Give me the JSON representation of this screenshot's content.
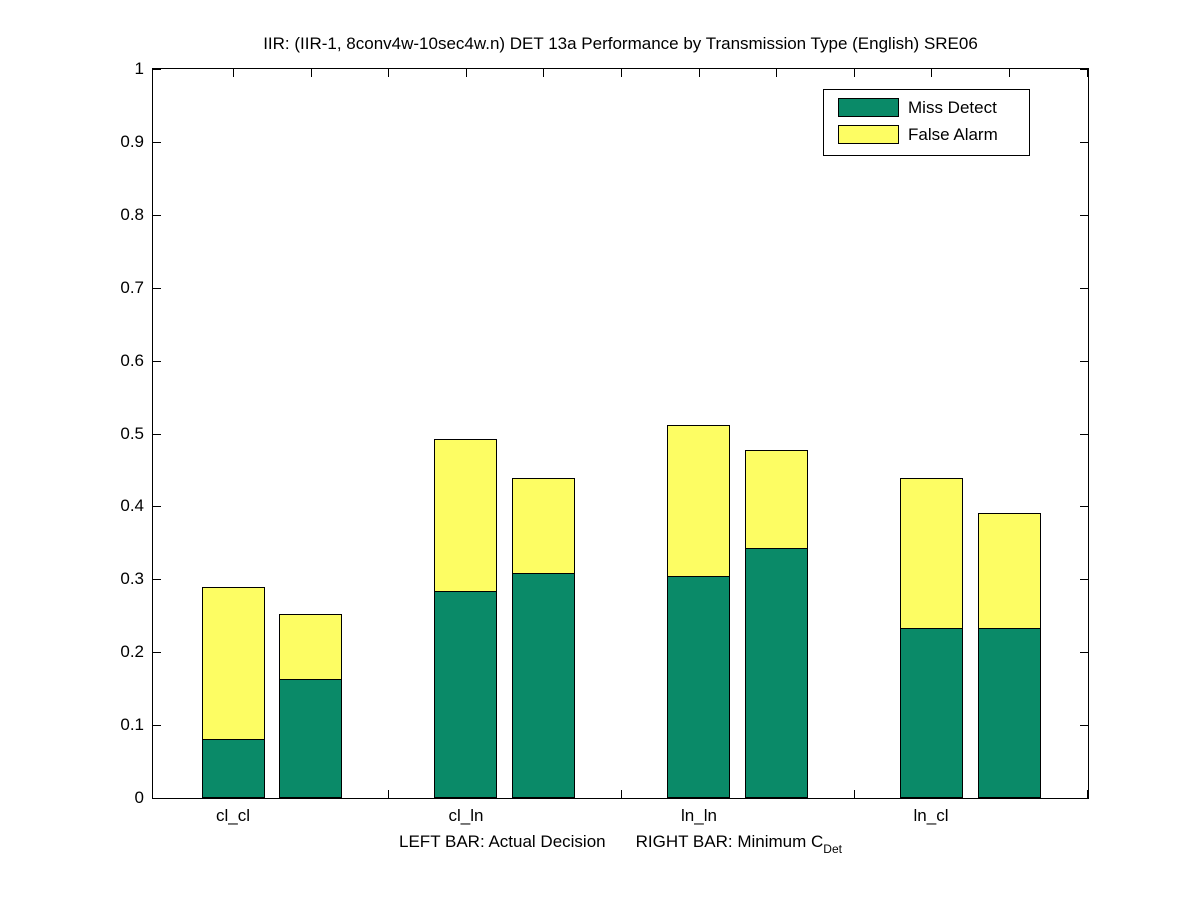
{
  "chart_data": {
    "type": "bar",
    "stacked": true,
    "title": "IIR: (IIR-1, 8conv4w-10sec4w.n) DET 13a Performance by Transmission Type (English) SRE06",
    "xlabel_left": "LEFT BAR: Actual Decision",
    "xlabel_right": "RIGHT BAR: Minimum C",
    "xlabel_subscript": "Det",
    "categories": [
      "cl_cl",
      "cl_ln",
      "ln_ln",
      "ln_cl"
    ],
    "bar_meaning": {
      "left_bar": "Actual Decision",
      "right_bar": "Minimum CDet"
    },
    "series": [
      {
        "name": "Miss Detect",
        "color": "#0a8a68",
        "actual": [
          0.081,
          0.284,
          0.305,
          0.233
        ],
        "minimum": [
          0.163,
          0.309,
          0.343,
          0.233
        ]
      },
      {
        "name": "False Alarm",
        "color": "#fdfd63",
        "actual": [
          0.208,
          0.209,
          0.207,
          0.206
        ],
        "minimum": [
          0.089,
          0.13,
          0.134,
          0.158
        ]
      }
    ],
    "stack_totals": {
      "actual": [
        0.289,
        0.493,
        0.512,
        0.439
      ],
      "minimum": [
        0.252,
        0.439,
        0.477,
        0.391
      ]
    },
    "y_axis": {
      "min": 0,
      "max": 1,
      "tick_step": 0.1,
      "tick_labels": [
        "0",
        "0.1",
        "0.2",
        "0.3",
        "0.4",
        "0.5",
        "0.6",
        "0.7",
        "0.8",
        "0.9",
        "1"
      ]
    },
    "x_axis": {
      "num_minor_ticks": 12
    },
    "legend": {
      "position": "top-right",
      "entries": [
        {
          "label": "Miss Detect",
          "color": "#0a8a68"
        },
        {
          "label": "False Alarm",
          "color": "#fdfd63"
        }
      ]
    },
    "grid": false,
    "axis_color": "#000000",
    "background": "#ffffff"
  }
}
